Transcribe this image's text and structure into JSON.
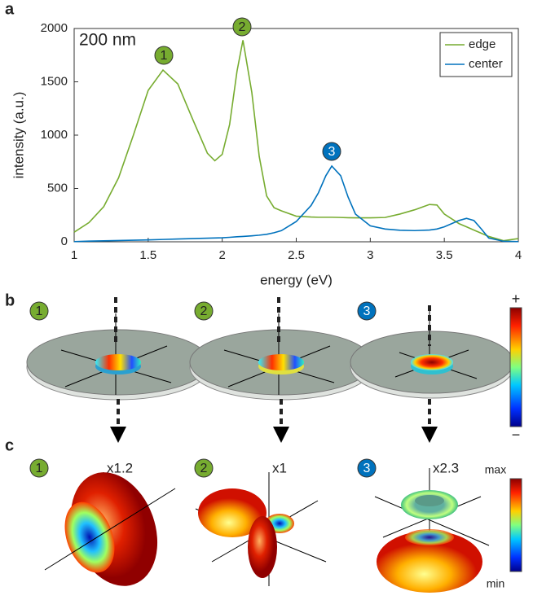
{
  "chart_data": {
    "type": "line",
    "text_annotation": "200 nm",
    "peak_labels": [
      "1",
      "2",
      "3"
    ],
    "xlabel": "energy (eV)",
    "ylabel": "intensity (a.u.)",
    "x": [
      1.0,
      1.1,
      1.2,
      1.3,
      1.4,
      1.5,
      1.6,
      1.7,
      1.8,
      1.9,
      1.95,
      2.0,
      2.05,
      2.1,
      2.14,
      2.2,
      2.25,
      2.3,
      2.35,
      2.4,
      2.5,
      2.6,
      2.65,
      2.7,
      2.74,
      2.8,
      2.85,
      2.9,
      3.0,
      3.1,
      3.2,
      3.3,
      3.4,
      3.45,
      3.5,
      3.6,
      3.65,
      3.7,
      3.75,
      3.8,
      3.9,
      4.0
    ],
    "series": [
      {
        "name": "edge",
        "color": "#77ac30",
        "values": [
          90,
          180,
          330,
          600,
          1000,
          1420,
          1610,
          1480,
          1150,
          830,
          760,
          820,
          1100,
          1600,
          1890,
          1400,
          800,
          430,
          320,
          290,
          240,
          232,
          230,
          230,
          230,
          228,
          226,
          225,
          225,
          228,
          260,
          300,
          350,
          345,
          260,
          170,
          140,
          110,
          80,
          50,
          10,
          30
        ]
      },
      {
        "name": "center",
        "color": "#0072bd",
        "values": [
          2,
          6,
          9,
          12,
          15,
          18,
          22,
          26,
          30,
          34,
          36,
          38,
          42,
          47,
          50,
          56,
          62,
          70,
          85,
          105,
          190,
          340,
          460,
          620,
          710,
          620,
          420,
          260,
          150,
          120,
          108,
          105,
          110,
          120,
          140,
          200,
          220,
          200,
          120,
          35,
          5,
          2
        ]
      }
    ],
    "xlim": [
      1,
      4
    ],
    "xticks": [
      1,
      1.5,
      2,
      2.5,
      3,
      3.5,
      4
    ],
    "ylim": [
      0,
      2000
    ],
    "yticks": [
      0,
      500,
      1000,
      1500,
      2000
    ],
    "legend": "top-right"
  },
  "panel_labels": [
    "a",
    "b",
    "c"
  ],
  "panel_b": {
    "badges": [
      "1",
      "2",
      "3"
    ],
    "colorbar": [
      "+",
      "−"
    ]
  },
  "panel_c": {
    "badges": [
      "1",
      "2",
      "3"
    ],
    "scales": [
      "x1.2",
      "x1",
      "x2.3"
    ],
    "colorbar": [
      "max",
      "min"
    ]
  }
}
